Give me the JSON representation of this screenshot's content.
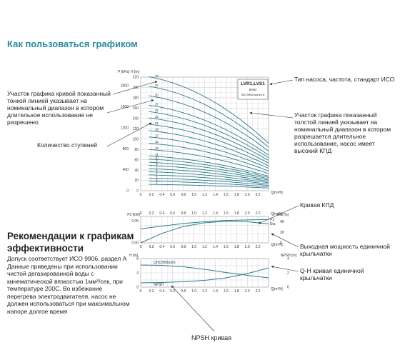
{
  "page": {
    "title": "Как пользоваться графиком",
    "recommend_title": "Рекомендации к графикам эффективности",
    "recommend_body": "Допуск соответствует ИСО 9906, раздел А Данные приведены при использовании чистой дегазированной воды с кинематической вязкостью 1мм²/сек, при температуре 200С. Во избежание перегрева электродвигателя, насос не должен использоваться при максимальном напоре долгое время",
    "annotations": {
      "thin_line": "Участок графика кривой показанный тонкой линией указывает на номинальный диапазон в котором длительное использование не разрешено",
      "stages": "Количество ступеней",
      "pump_type": "Тип насоса, частота, стандарт ИСО",
      "thick_line": "Участок графика показанный толстой линией указывает на номинальный диапазон в котором разрешается длительное использование, насос имеет высокий КПД",
      "efficiency": "Кривая КПД",
      "power": "Выходная мощность единичной крыльчатки",
      "qh": "Q-H кривая единичной крыльчатки",
      "npsh": "NPSH  кривая"
    },
    "colors": {
      "title": "#2a8aa0",
      "curve": "#2a7d8e",
      "grid": "#c9c9c9",
      "arrow": "#333333"
    }
  },
  "chart_data": [
    {
      "type": "line",
      "title": "",
      "xlabel": "Q[m³/h]",
      "ylabel": "H [m]",
      "ylabel2": "P [kPa]",
      "xlim": [
        0,
        2.4
      ],
      "ylim": [
        0,
        220
      ],
      "x_ticks": [
        "0",
        "0.2",
        "0.4",
        "0.6",
        "0.8",
        "1.0",
        "1.2",
        "1.4",
        "1.6",
        "1.8",
        "2.0",
        "2.2"
      ],
      "y_ticks": [
        "0",
        "20",
        "40",
        "60",
        "80",
        "100",
        "120",
        "140",
        "160",
        "180",
        "200",
        "220"
      ],
      "y2_ticks": [
        "0",
        "400",
        "800",
        "1200",
        "1600",
        "2000"
      ],
      "box": {
        "model": "LVR1,LVS1",
        "frequency": "50Hz",
        "standard": "ISO 9906 Annex A"
      },
      "curve_model": {
        "per_stage_shutoff_head_m": 6.2,
        "per_stage_head_at_2_4_m": 2.55
      },
      "series": [
        {
          "stages": 36,
          "label": "36"
        },
        {
          "stages": 33,
          "label": "33"
        },
        {
          "stages": 30,
          "label": "30"
        },
        {
          "stages": 27,
          "label": "27"
        },
        {
          "stages": 25,
          "label": "25"
        },
        {
          "stages": 23,
          "label": "23"
        },
        {
          "stages": 21,
          "label": "21"
        },
        {
          "stages": 19,
          "label": "19"
        },
        {
          "stages": 17,
          "label": "17"
        },
        {
          "stages": 15,
          "label": "15"
        },
        {
          "stages": 13,
          "label": "13"
        },
        {
          "stages": 11,
          "label": "11"
        },
        {
          "stages": 10,
          "label": "10"
        },
        {
          "stages": 9,
          "label": "9"
        },
        {
          "stages": 8,
          "label": "8"
        },
        {
          "stages": 7,
          "label": "7"
        },
        {
          "stages": 6,
          "label": "6"
        },
        {
          "stages": 5,
          "label": "5"
        },
        {
          "stages": 4,
          "label": "4"
        },
        {
          "stages": 3,
          "label": "3"
        },
        {
          "stages": 2,
          "label": "2"
        }
      ]
    },
    {
      "type": "line",
      "title": "",
      "xlabel": "Q[m³/h]",
      "ylabel": "P2 [kW]",
      "ylabel2": "Eta [%]",
      "xlim": [
        0,
        2.4
      ],
      "ylim": [
        0,
        0.06
      ],
      "x_ticks": [
        "0",
        "0.2",
        "0.4",
        "0.6",
        "0.8",
        "1.0",
        "1.2",
        "1.4",
        "1.6",
        "1.8",
        "2.0",
        "2.2"
      ],
      "y_ticks": [
        "0.00",
        "0.05"
      ],
      "y2_ticks": [
        "0",
        "20",
        "40"
      ],
      "series": [
        {
          "name": "Eta",
          "x": [
            0,
            0.4,
            0.8,
            1.2,
            1.6,
            2.0,
            2.4
          ],
          "y": [
            0,
            18,
            31,
            38,
            41,
            40,
            36
          ]
        },
        {
          "name": "P2",
          "x": [
            0,
            0.4,
            0.8,
            1.2,
            1.6,
            2.0,
            2.4
          ],
          "y": [
            0.032,
            0.038,
            0.044,
            0.048,
            0.051,
            0.052,
            0.053
          ]
        }
      ]
    },
    {
      "type": "line",
      "title": "",
      "xlabel": "Q[m³/h]",
      "ylabel": "H [m]",
      "ylabel2": "NPSH [m]",
      "xlim": [
        0,
        2.4
      ],
      "ylim": [
        0,
        8
      ],
      "x_ticks": [
        "0",
        "0.2",
        "0.4",
        "0.6",
        "0.8",
        "1.0",
        "1.2",
        "1.4",
        "1.6",
        "1.8",
        "2.0",
        "2.2"
      ],
      "y_ticks": [
        "0",
        "4",
        "8"
      ],
      "y2_ticks": [
        "0",
        "2",
        "4"
      ],
      "series": [
        {
          "name": "QH(2900rpm)",
          "x": [
            0,
            0.4,
            0.8,
            1.2,
            1.6,
            2.0,
            2.4
          ],
          "y": [
            6.2,
            6.1,
            5.7,
            5.0,
            4.1,
            3.3,
            2.6
          ]
        },
        {
          "name": "NPSH",
          "x": [
            0,
            0.4,
            0.8,
            1.2,
            1.6,
            2.0,
            2.4
          ],
          "y": [
            0.6,
            0.65,
            0.75,
            0.95,
            1.3,
            1.9,
            2.7
          ]
        }
      ]
    }
  ]
}
